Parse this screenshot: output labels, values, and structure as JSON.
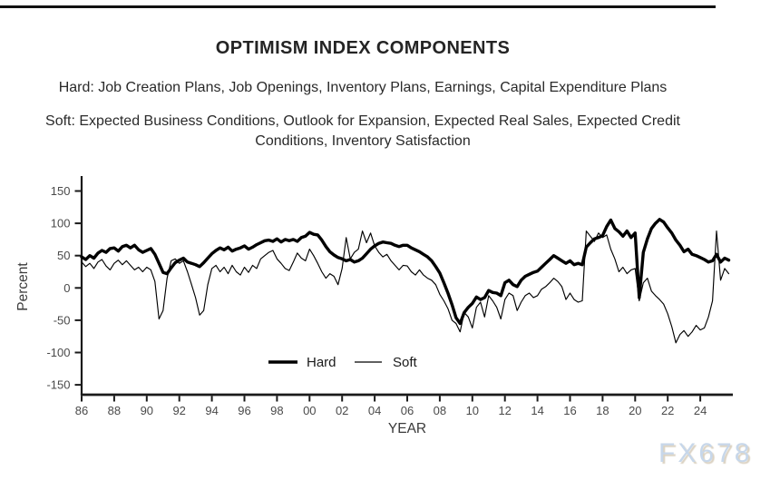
{
  "page": {
    "watermark": "FX678"
  },
  "header": {
    "title": "OPTIMISM INDEX COMPONENTS",
    "subtitle_hard": "Hard: Job Creation Plans, Job Openings, Inventory Plans, Earnings, Capital Expenditure Plans",
    "subtitle_soft": "Soft: Expected Business Conditions, Outlook for Expansion, Expected Real Sales, Expected Credit Conditions, Inventory Satisfaction"
  },
  "chart_data": {
    "type": "line",
    "title": "OPTIMISM INDEX COMPONENTS",
    "xlabel": "YEAR",
    "ylabel": "Percent",
    "grid": false,
    "legend_position": "inside-bottom-center",
    "xlim": [
      1986,
      2026
    ],
    "ylim": [
      -165,
      160
    ],
    "y_ticks": [
      150,
      100,
      50,
      0,
      -50,
      -100,
      -150
    ],
    "x_tick_years": [
      1986,
      1988,
      1990,
      1992,
      1994,
      1996,
      1998,
      2000,
      2002,
      2004,
      2006,
      2008,
      2010,
      2012,
      2014,
      2016,
      2018,
      2020,
      2022,
      2024
    ],
    "x_tick_labels": [
      "86",
      "88",
      "90",
      "92",
      "94",
      "96",
      "98",
      "00",
      "02",
      "04",
      "06",
      "08",
      "10",
      "12",
      "14",
      "16",
      "18",
      "20",
      "22",
      "24"
    ],
    "x_start": 1986,
    "x_step": 0.25,
    "series": [
      {
        "name": "Hard",
        "style": "thick",
        "values": [
          48,
          44,
          50,
          46,
          54,
          58,
          55,
          61,
          62,
          57,
          64,
          66,
          62,
          66,
          59,
          55,
          58,
          61,
          52,
          38,
          24,
          22,
          31,
          39,
          43,
          46,
          40,
          38,
          36,
          33,
          39,
          46,
          53,
          58,
          62,
          59,
          63,
          57,
          60,
          62,
          65,
          60,
          63,
          67,
          70,
          73,
          74,
          72,
          76,
          71,
          75,
          73,
          75,
          72,
          78,
          80,
          86,
          83,
          82,
          74,
          64,
          56,
          51,
          47,
          45,
          42,
          44,
          40,
          42,
          46,
          53,
          60,
          65,
          69,
          71,
          70,
          69,
          66,
          64,
          66,
          66,
          62,
          59,
          56,
          52,
          48,
          42,
          33,
          23,
          8,
          -8,
          -26,
          -46,
          -55,
          -38,
          -30,
          -24,
          -14,
          -18,
          -15,
          -4,
          -7,
          -8,
          -12,
          8,
          12,
          5,
          2,
          12,
          18,
          21,
          24,
          26,
          32,
          38,
          44,
          50,
          46,
          42,
          38,
          42,
          36,
          38,
          36,
          63,
          70,
          76,
          78,
          81,
          95,
          105,
          92,
          87,
          80,
          88,
          78,
          85,
          -15,
          55,
          76,
          92,
          100,
          106,
          102,
          93,
          85,
          74,
          66,
          56,
          60,
          52,
          50,
          47,
          44,
          40,
          42,
          52,
          40,
          46,
          43
        ]
      },
      {
        "name": "Soft",
        "style": "thin",
        "values": [
          40,
          33,
          38,
          30,
          40,
          44,
          34,
          28,
          38,
          43,
          36,
          42,
          35,
          28,
          32,
          25,
          32,
          28,
          10,
          -48,
          -35,
          15,
          42,
          45,
          38,
          42,
          25,
          5,
          -15,
          -42,
          -35,
          5,
          30,
          35,
          25,
          32,
          22,
          35,
          25,
          20,
          32,
          24,
          35,
          30,
          45,
          50,
          55,
          58,
          45,
          38,
          30,
          27,
          40,
          54,
          46,
          42,
          60,
          50,
          38,
          25,
          15,
          22,
          18,
          5,
          30,
          78,
          45,
          55,
          60,
          88,
          70,
          85,
          65,
          55,
          48,
          52,
          42,
          35,
          28,
          35,
          34,
          25,
          20,
          28,
          20,
          15,
          12,
          5,
          -10,
          -20,
          -32,
          -50,
          -55,
          -68,
          -38,
          -45,
          -62,
          -30,
          -22,
          -45,
          -12,
          -20,
          -30,
          -48,
          -18,
          -8,
          -12,
          -35,
          -22,
          -12,
          -8,
          -15,
          -12,
          -2,
          2,
          8,
          15,
          10,
          2,
          -18,
          -8,
          -18,
          -22,
          -20,
          88,
          80,
          72,
          85,
          78,
          82,
          60,
          45,
          25,
          32,
          22,
          28,
          30,
          -20,
          8,
          15,
          -5,
          -12,
          -18,
          -25,
          -40,
          -60,
          -85,
          -72,
          -66,
          -75,
          -68,
          -58,
          -65,
          -62,
          -45,
          -20,
          88,
          12,
          30,
          22
        ]
      }
    ]
  }
}
